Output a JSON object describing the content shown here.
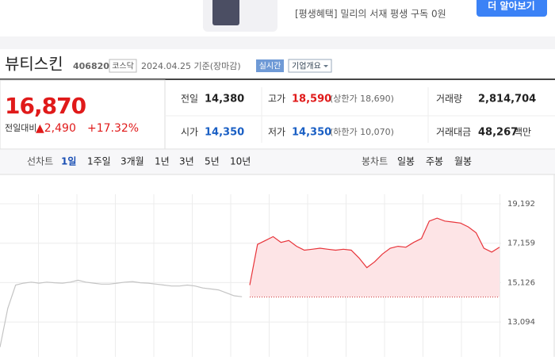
{
  "banner": {
    "text": "[평생혜택] 밀리의 서재 평생 구독 0원",
    "button": "더 알아보기"
  },
  "stock": {
    "name": "뷰티스킨",
    "code": "406820",
    "market": "코스닥",
    "date": "2024.04.25 기준(장마감)",
    "realtime": "실시간",
    "overview": "기업개요"
  },
  "quote": {
    "price": "16,870",
    "change_label": "전일대비",
    "change": "▲2,490",
    "change_rate": "+17.32%",
    "rows": [
      [
        {
          "label": "전일",
          "value": "14,380"
        },
        {
          "label": "고가",
          "value": "18,590",
          "note": "(상한가 18,690)"
        },
        {
          "label": "거래량",
          "value": "2,814,704"
        }
      ],
      [
        {
          "label": "시가",
          "value": "14,350"
        },
        {
          "label": "저가",
          "value": "14,350",
          "note": "(하한가 10,070)"
        },
        {
          "label": "거래대금",
          "value": "48,267",
          "unit": "백만"
        }
      ]
    ]
  },
  "tabs": {
    "line_label": "선차트",
    "line": [
      "1일",
      "1주일",
      "3개월",
      "1년",
      "3년",
      "5년",
      "10년"
    ],
    "candle_label": "봉차트",
    "candle": [
      "일봉",
      "주봉",
      "월봉"
    ]
  },
  "chart_data": {
    "type": "line",
    "ylim": [
      11300,
      20500
    ],
    "yticks": [
      {
        "value": 19192,
        "label": "19,192"
      },
      {
        "value": 17159,
        "label": "17,159"
      },
      {
        "value": 15126,
        "label": "15,126"
      },
      {
        "value": 13094,
        "label": "13,094"
      }
    ],
    "baseline": 14380,
    "grid": true,
    "series": [
      {
        "color": "#c4c4c4",
        "values": [
          11800,
          13800,
          15000,
          15100,
          15150,
          15100,
          15150,
          15120,
          15100,
          15150,
          15250,
          15150,
          15100,
          15050,
          15050,
          15100,
          15150,
          15180,
          15120,
          15100,
          15050,
          15000,
          14950,
          14950,
          15000,
          14950,
          14850,
          14800,
          14750,
          14600,
          14450,
          14400,
          null,
          null,
          null,
          null,
          null,
          null,
          null,
          null,
          null,
          null,
          null,
          null,
          null,
          null,
          null,
          null,
          null,
          null,
          null,
          null,
          null,
          null,
          null,
          null,
          null,
          null,
          null,
          null,
          null,
          null,
          null,
          null,
          null
        ]
      },
      {
        "color": "#e8343a",
        "fill": "#fde4e6",
        "values": [
          null,
          null,
          null,
          null,
          null,
          null,
          null,
          null,
          null,
          null,
          null,
          null,
          null,
          null,
          null,
          null,
          null,
          null,
          null,
          null,
          null,
          null,
          null,
          null,
          null,
          null,
          null,
          null,
          null,
          null,
          null,
          null,
          15000,
          17100,
          17300,
          17500,
          17200,
          17300,
          17000,
          16800,
          16850,
          16900,
          16850,
          16800,
          16850,
          16800,
          16400,
          15900,
          16200,
          16600,
          16900,
          17000,
          16950,
          17200,
          17400,
          18300,
          18450,
          18300,
          18250,
          18200,
          18000,
          17700,
          16900,
          16700,
          16950
        ]
      }
    ]
  }
}
